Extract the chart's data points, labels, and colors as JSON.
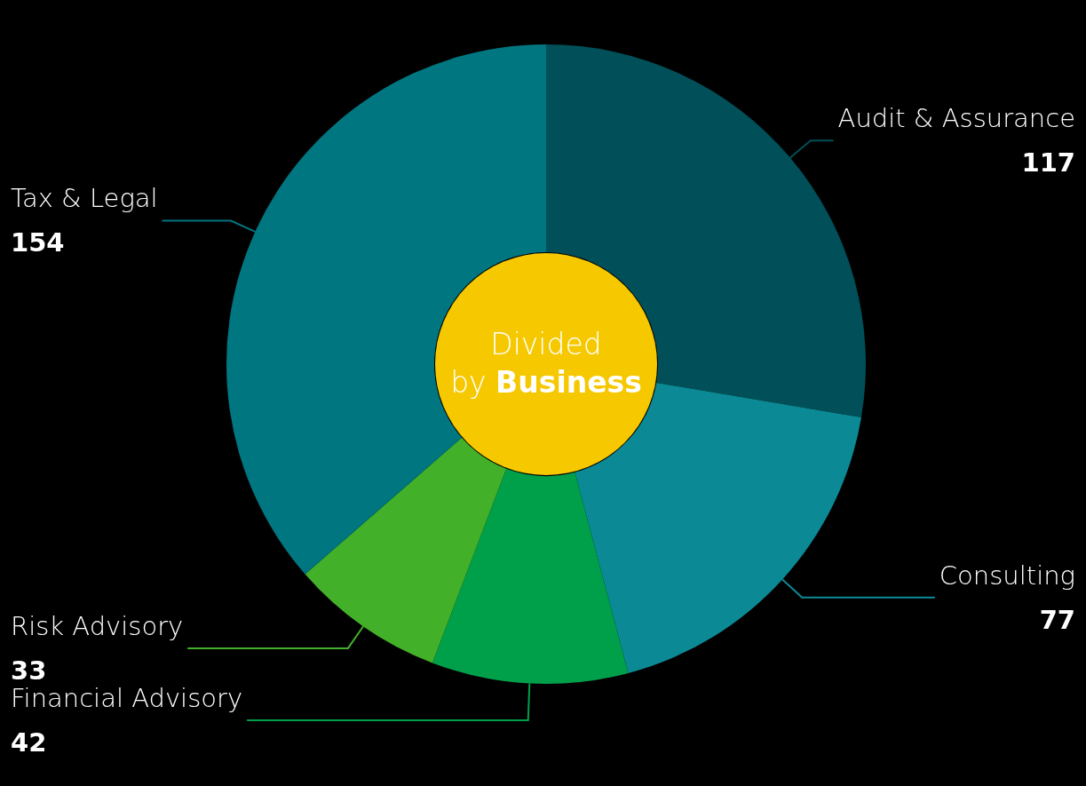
{
  "chart_data": {
    "type": "donut",
    "title": "Divided by Business",
    "categories": [
      "Audit & Assurance",
      "Consulting",
      "Financial Advisory",
      "Risk Advisory",
      "Tax & Legal"
    ],
    "values": [
      117,
      77,
      42,
      33,
      154
    ],
    "colors": [
      "#004f59",
      "#0b8a96",
      "#00a04a",
      "#43b02a",
      "#007680"
    ],
    "data_labels": true
  }
}
